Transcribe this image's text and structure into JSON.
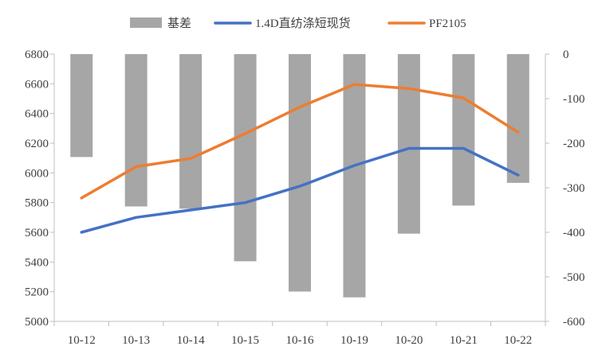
{
  "chart_data": {
    "type": "bar+line",
    "categories": [
      "10-12",
      "10-13",
      "10-14",
      "10-15",
      "10-16",
      "10-19",
      "10-20",
      "10-21",
      "10-22"
    ],
    "series": [
      {
        "name": "基差",
        "type": "bar",
        "axis": "right",
        "color": "#a6a6a6",
        "values": [
          -231,
          -342,
          -347,
          -465,
          -533,
          -546,
          -403,
          -340,
          -289
        ]
      },
      {
        "name": "1.4D直纺涤短现货",
        "type": "line",
        "axis": "left",
        "color": "#4472c4",
        "values": [
          5600,
          5700,
          5750,
          5800,
          5910,
          6050,
          6165,
          6165,
          5985
        ]
      },
      {
        "name": "PF2105",
        "type": "line",
        "axis": "left",
        "color": "#ed7d31",
        "values": [
          5831,
          6042,
          6097,
          6265,
          6443,
          6596,
          6568,
          6505,
          6274
        ]
      }
    ],
    "y_left": {
      "min": 5000,
      "max": 6800,
      "step": 200
    },
    "y_right": {
      "min": -600,
      "max": 0,
      "step": 100
    },
    "legend_position": "top",
    "grid": false
  }
}
